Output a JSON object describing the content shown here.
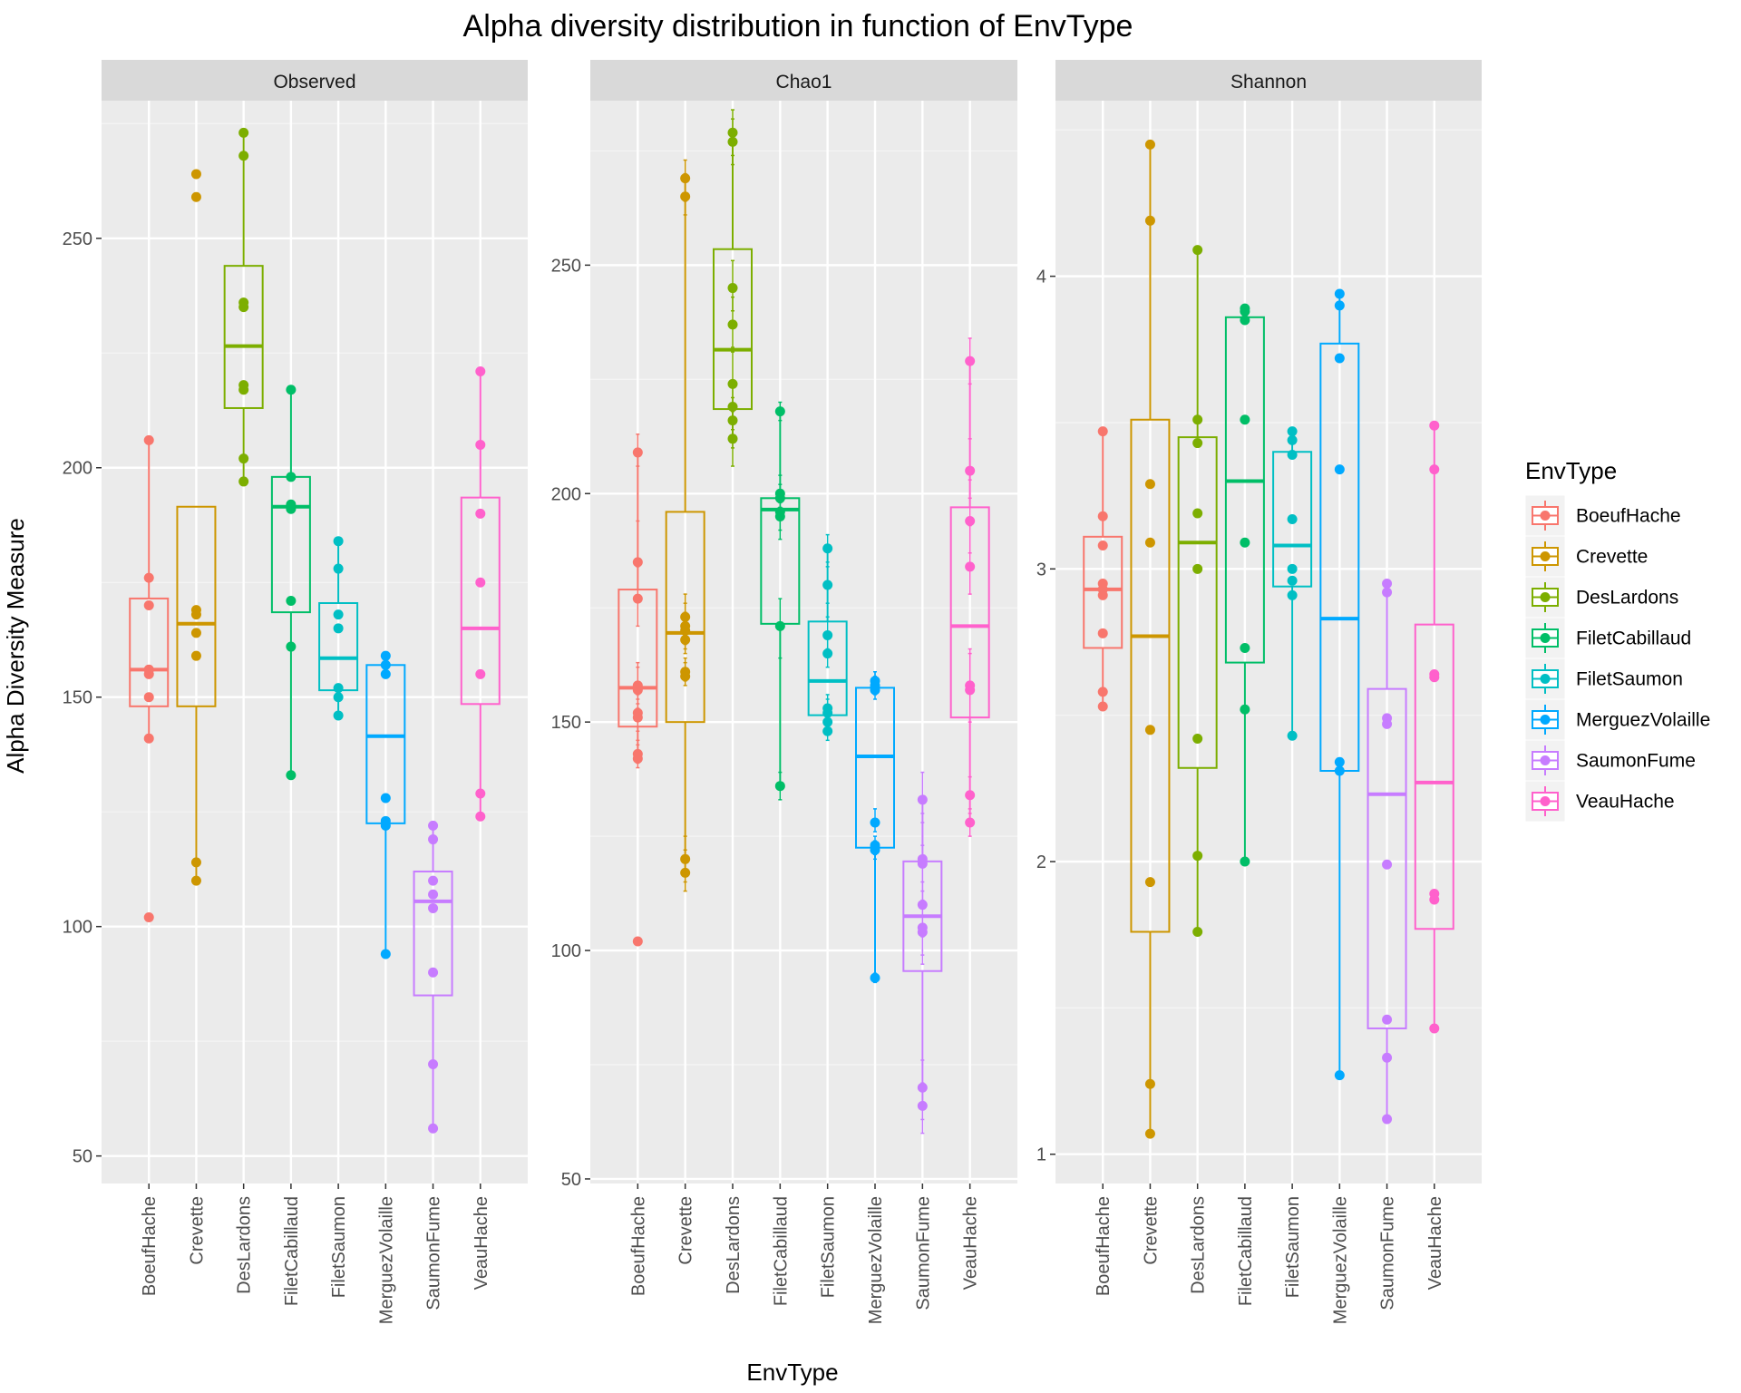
{
  "chart_data": {
    "type": "box",
    "title": "Alpha diversity distribution in function of EnvType",
    "xlabel": "EnvType",
    "ylabel": "Alpha Diversity Measure",
    "categories": [
      "BoeufHache",
      "Crevette",
      "DesLardons",
      "FiletCabillaud",
      "FiletSaumon",
      "MerguezVolaille",
      "SaumonFume",
      "VeauHache"
    ],
    "colors": [
      "#F8766D",
      "#CD9600",
      "#7CAE00",
      "#00BE67",
      "#00BFC4",
      "#00A9FF",
      "#C77CFF",
      "#FF61CC"
    ],
    "legend": {
      "title": "EnvType",
      "position": "right"
    },
    "grid": true,
    "panels": [
      {
        "label": "Observed",
        "ylim": [
          44,
          280
        ],
        "yticks": [
          50,
          100,
          150,
          200,
          250
        ],
        "groups": [
          {
            "box": {
              "q1": 148,
              "median": 156,
              "q3": 171.5,
              "lower": 141,
              "upper": 206
            },
            "points": [
              102,
              141,
              150,
              155,
              156,
              156,
              170,
              176,
              206
            ],
            "error_bars": []
          },
          {
            "box": {
              "q1": 148,
              "median": 166,
              "q3": 191.5,
              "lower": 110,
              "upper": 191.5
            },
            "points": [
              110,
              114,
              159,
              164,
              168,
              169,
              259,
              264
            ],
            "error_bars": []
          },
          {
            "box": {
              "q1": 213,
              "median": 226.5,
              "q3": 244,
              "lower": 197,
              "upper": 273
            },
            "points": [
              197,
              202,
              217,
              218,
              235,
              236,
              268,
              273
            ],
            "error_bars": []
          },
          {
            "box": {
              "q1": 168.5,
              "median": 191.5,
              "q3": 198,
              "lower": 133,
              "upper": 217
            },
            "points": [
              133,
              161,
              171,
              191,
              192,
              198,
              217
            ],
            "error_bars": []
          },
          {
            "box": {
              "q1": 151.5,
              "median": 158.5,
              "q3": 170.5,
              "lower": 146,
              "upper": 184
            },
            "points": [
              146,
              150,
              152,
              165,
              168,
              178,
              184
            ],
            "error_bars": []
          },
          {
            "box": {
              "q1": 122.5,
              "median": 141.5,
              "q3": 157,
              "lower": 94,
              "upper": 159
            },
            "points": [
              94,
              122,
              123,
              128,
              155,
              157,
              159
            ],
            "error_bars": []
          },
          {
            "box": {
              "q1": 85,
              "median": 105.5,
              "q3": 112,
              "lower": 56,
              "upper": 122
            },
            "points": [
              56,
              70,
              90,
              104,
              107,
              110,
              119,
              122
            ],
            "error_bars": []
          },
          {
            "box": {
              "q1": 148.5,
              "median": 165,
              "q3": 193.5,
              "lower": 124,
              "upper": 221
            },
            "points": [
              124,
              129,
              155,
              175,
              190,
              205,
              221
            ],
            "error_bars": []
          }
        ]
      },
      {
        "label": "Chao1",
        "ylim": [
          49,
          286
        ],
        "yticks": [
          50,
          100,
          150,
          200,
          250
        ],
        "groups": [
          {
            "box": {
              "q1": 149,
              "median": 157.5,
              "q3": 179,
              "lower": 142,
              "upper": 209
            },
            "points": [
              102,
              142,
              143,
              151,
              152,
              157,
              158,
              177,
              185,
              209
            ],
            "error_bars": [
              [
                140,
                145
              ],
              [
                141,
                146
              ],
              [
                148,
                155
              ],
              [
                149,
                156
              ],
              [
                153,
                162
              ],
              [
                154,
                163
              ],
              [
                171,
                184
              ],
              [
                177,
                194
              ],
              [
                206,
                213
              ]
            ]
          },
          {
            "box": {
              "q1": 150,
              "median": 169.5,
              "q3": 196,
              "lower": 117,
              "upper": 269
            },
            "points": [
              117,
              120,
              160,
              161,
              168,
              170,
              171,
              173,
              265,
              269
            ],
            "error_bars": [
              [
                113,
                122
              ],
              [
                115,
                125
              ],
              [
                158,
                163
              ],
              [
                159,
                164
              ],
              [
                165,
                172
              ],
              [
                166,
                174
              ],
              [
                167,
                176
              ],
              [
                169,
                178
              ],
              [
                261,
                270
              ],
              [
                264,
                273
              ]
            ]
          },
          {
            "box": {
              "q1": 218.5,
              "median": 231.5,
              "q3": 253.5,
              "lower": 212,
              "upper": 279
            },
            "points": [
              212,
              216,
              219,
              224,
              237,
              245,
              277,
              279
            ],
            "error_bars": [
              [
                206,
                218
              ],
              [
                210,
                221
              ],
              [
                214,
                224
              ],
              [
                218,
                231
              ],
              [
                232,
                243
              ],
              [
                240,
                251
              ],
              [
                272,
                282
              ],
              [
                274,
                284
              ]
            ]
          },
          {
            "box": {
              "q1": 171.5,
              "median": 196.5,
              "q3": 199,
              "lower": 136,
              "upper": 218
            },
            "points": [
              136,
              171,
              195,
              196,
              199,
              200,
              218
            ],
            "error_bars": [
              [
                133,
                139
              ],
              [
                164,
                177
              ],
              [
                190,
                198
              ],
              [
                192,
                199
              ],
              [
                196,
                202
              ],
              [
                197,
                204
              ],
              [
                216,
                220
              ]
            ]
          },
          {
            "box": {
              "q1": 151.5,
              "median": 159,
              "q3": 172,
              "lower": 148,
              "upper": 188
            },
            "points": [
              148,
              150,
              152,
              153,
              165,
              169,
              180,
              188
            ],
            "error_bars": [
              [
                146,
                150
              ],
              [
                148,
                152
              ],
              [
                150,
                155
              ],
              [
                151,
                156
              ],
              [
                162,
                169
              ],
              [
                166,
                173
              ],
              [
                176,
                185
              ],
              [
                184,
                191
              ]
            ]
          },
          {
            "box": {
              "q1": 122.5,
              "median": 142.5,
              "q3": 157.5,
              "lower": 94,
              "upper": 159
            },
            "points": [
              94,
              122,
              123,
              128,
              157,
              158,
              159
            ],
            "error_bars": [
              [
                93,
                95
              ],
              [
                120,
                124
              ],
              [
                121,
                125
              ],
              [
                126,
                131
              ],
              [
                155,
                160
              ],
              [
                156,
                161
              ],
              [
                157,
                161
              ]
            ]
          },
          {
            "box": {
              "q1": 95.5,
              "median": 107.5,
              "q3": 119.5,
              "lower": 66,
              "upper": 133
            },
            "points": [
              66,
              70,
              104,
              105,
              110,
              119,
              120,
              133
            ],
            "error_bars": [
              [
                60,
                71
              ],
              [
                63,
                76
              ],
              [
                97,
                113
              ],
              [
                99,
                115
              ],
              [
                103,
                120
              ],
              [
                110,
                128
              ],
              [
                111,
                130
              ],
              [
                123,
                139
              ]
            ]
          },
          {
            "box": {
              "q1": 151,
              "median": 171,
              "q3": 197,
              "lower": 128,
              "upper": 229
            },
            "points": [
              128,
              134,
              157,
              158,
              184,
              194,
              205,
              229
            ],
            "error_bars": [
              [
                125,
                131
              ],
              [
                130,
                138
              ],
              [
                150,
                165
              ],
              [
                151,
                166
              ],
              [
                178,
                193
              ],
              [
                187,
                203
              ],
              [
                199,
                212
              ],
              [
                224,
                234
              ]
            ]
          }
        ]
      },
      {
        "label": "Shannon",
        "ylim": [
          0.9,
          4.6
        ],
        "yticks": [
          1,
          2,
          3,
          4
        ],
        "groups": [
          {
            "box": {
              "q1": 2.73,
              "median": 2.93,
              "q3": 3.11,
              "lower": 2.53,
              "upper": 3.47
            },
            "points": [
              2.53,
              2.58,
              2.78,
              2.91,
              2.93,
              2.95,
              3.08,
              3.18,
              3.47
            ],
            "error_bars": []
          },
          {
            "box": {
              "q1": 1.76,
              "median": 2.77,
              "q3": 3.51,
              "lower": 1.07,
              "upper": 4.45
            },
            "points": [
              1.07,
              1.24,
              1.93,
              2.45,
              3.09,
              3.29,
              4.19,
              4.45
            ],
            "error_bars": []
          },
          {
            "box": {
              "q1": 2.32,
              "median": 3.09,
              "q3": 3.45,
              "lower": 1.76,
              "upper": 4.09
            },
            "points": [
              1.76,
              2.02,
              2.42,
              3.0,
              3.19,
              3.43,
              3.51,
              4.09
            ],
            "error_bars": []
          },
          {
            "box": {
              "q1": 2.68,
              "median": 3.3,
              "q3": 3.86,
              "lower": 2.0,
              "upper": 3.89
            },
            "points": [
              2.0,
              2.52,
              2.73,
              3.09,
              3.51,
              3.85,
              3.88,
              3.89
            ],
            "error_bars": []
          },
          {
            "box": {
              "q1": 2.94,
              "median": 3.08,
              "q3": 3.4,
              "lower": 2.43,
              "upper": 3.47
            },
            "points": [
              2.43,
              2.91,
              2.96,
              3.0,
              3.17,
              3.39,
              3.44,
              3.47
            ],
            "error_bars": []
          },
          {
            "box": {
              "q1": 2.31,
              "median": 2.83,
              "q3": 3.77,
              "lower": 1.27,
              "upper": 3.94
            },
            "points": [
              1.27,
              2.31,
              2.34,
              3.34,
              3.72,
              3.9,
              3.94
            ],
            "error_bars": []
          },
          {
            "box": {
              "q1": 1.43,
              "median": 2.23,
              "q3": 2.59,
              "lower": 1.12,
              "upper": 2.95
            },
            "points": [
              1.12,
              1.33,
              1.46,
              1.99,
              2.47,
              2.49,
              2.92,
              2.95
            ],
            "error_bars": []
          },
          {
            "box": {
              "q1": 1.77,
              "median": 2.27,
              "q3": 2.81,
              "lower": 1.43,
              "upper": 3.49
            },
            "points": [
              1.43,
              1.87,
              1.89,
              2.63,
              2.64,
              3.34,
              3.49
            ],
            "error_bars": []
          }
        ]
      }
    ]
  }
}
